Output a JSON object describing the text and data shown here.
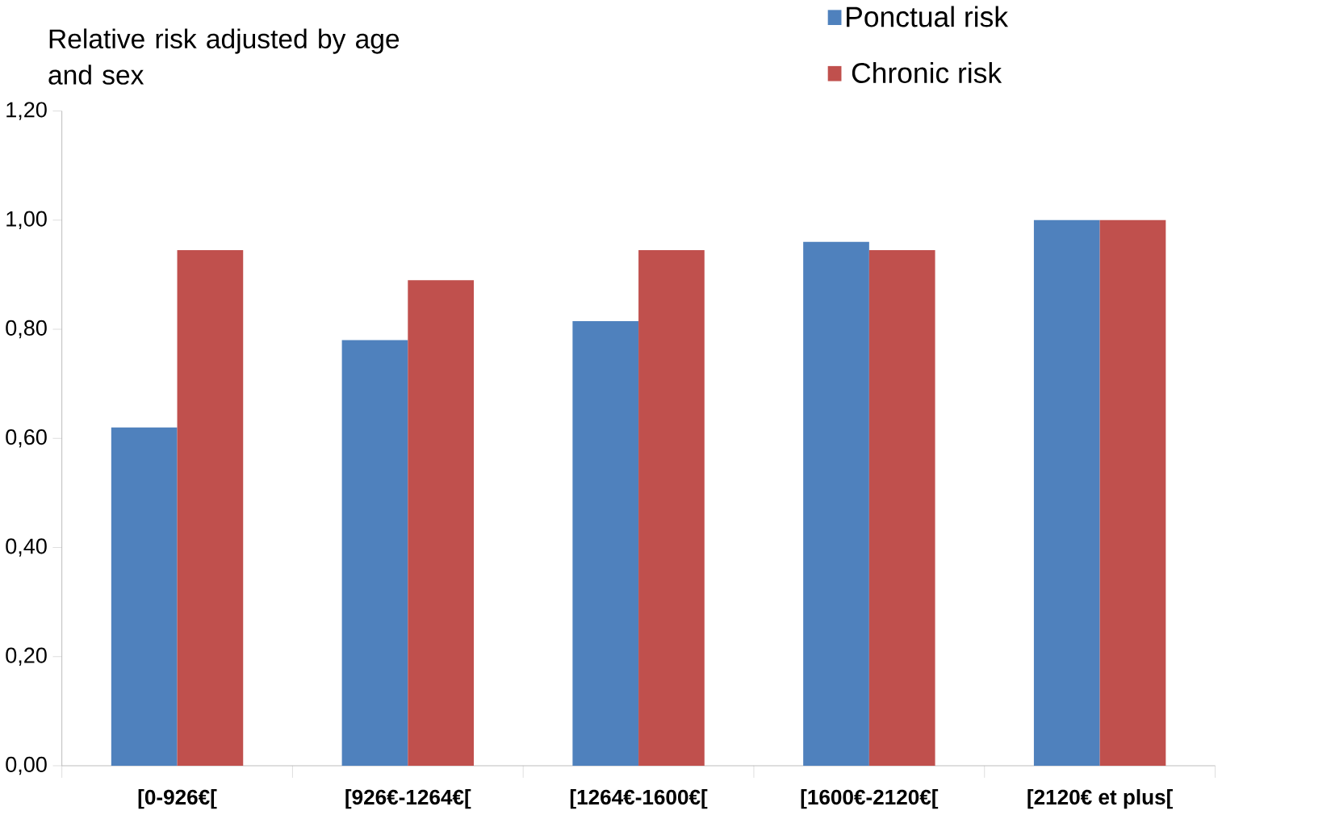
{
  "chart_data": {
    "type": "bar",
    "ylabel": "Relative risk adjusted by age and sex",
    "categories": [
      "[0-926€[",
      "[926€-1264€[",
      "[1264€-1600€[",
      "[1600€-2120€[",
      "[2120€  et plus["
    ],
    "series": [
      {
        "name": "Ponctual risk",
        "color": "#4f81bd",
        "values": [
          0.62,
          0.78,
          0.815,
          0.96,
          1.0
        ]
      },
      {
        "name": "Chronic risk",
        "color": "#c0504d",
        "values": [
          0.945,
          0.89,
          0.945,
          0.945,
          1.0
        ]
      }
    ],
    "ylim": [
      0,
      1.2
    ],
    "yticks": [
      {
        "value": 0,
        "label": "0,00"
      },
      {
        "value": 0.2,
        "label": "0,20"
      },
      {
        "value": 0.4,
        "label": "0,40"
      },
      {
        "value": 0.6,
        "label": "0,60"
      },
      {
        "value": 0.8,
        "label": "0,80"
      },
      {
        "value": 1.0,
        "label": "1,00"
      },
      {
        "value": 1.2,
        "label": "1,20"
      }
    ],
    "grid": false,
    "legend": "top right"
  }
}
